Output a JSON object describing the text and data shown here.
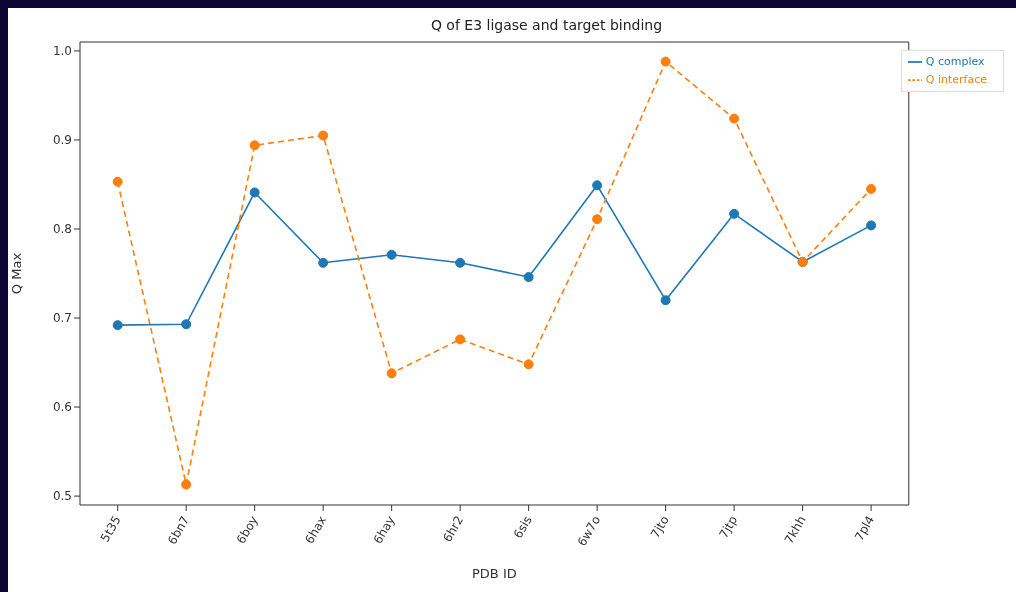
{
  "chart_data": {
    "type": "line",
    "title": "Q of E3 ligase and target binding",
    "xlabel": "PDB ID",
    "ylabel": "Q Max",
    "categories": [
      "5t35",
      "6bn7",
      "6boy",
      "6hax",
      "6hay",
      "6hr2",
      "6sis",
      "6w7o",
      "7jto",
      "7jtp",
      "7khh",
      "7pl4"
    ],
    "series": [
      {
        "name": "Q complex",
        "color": "#1f77b4",
        "line_style": "solid",
        "values": [
          0.692,
          0.693,
          0.841,
          0.762,
          0.771,
          0.762,
          0.746,
          0.849,
          0.72,
          0.817,
          0.763,
          0.804
        ]
      },
      {
        "name": "Q interface",
        "color": "#ff7f0e",
        "line_style": "dashed",
        "values": [
          0.853,
          0.513,
          0.894,
          0.905,
          0.638,
          0.676,
          0.648,
          0.811,
          0.988,
          0.924,
          0.763,
          0.845
        ]
      }
    ],
    "ylim": [
      0.49,
      1.01
    ],
    "yticks": [
      {
        "value": 0.5,
        "label": "0.5"
      },
      {
        "value": 0.6,
        "label": "0.6"
      },
      {
        "value": 0.7,
        "label": "0.7"
      },
      {
        "value": 0.8,
        "label": "0.8"
      },
      {
        "value": 0.9,
        "label": "0.9"
      },
      {
        "value": 1.0,
        "label": "1.0"
      }
    ],
    "grid": false,
    "legend": "top right",
    "marker": "circle"
  }
}
